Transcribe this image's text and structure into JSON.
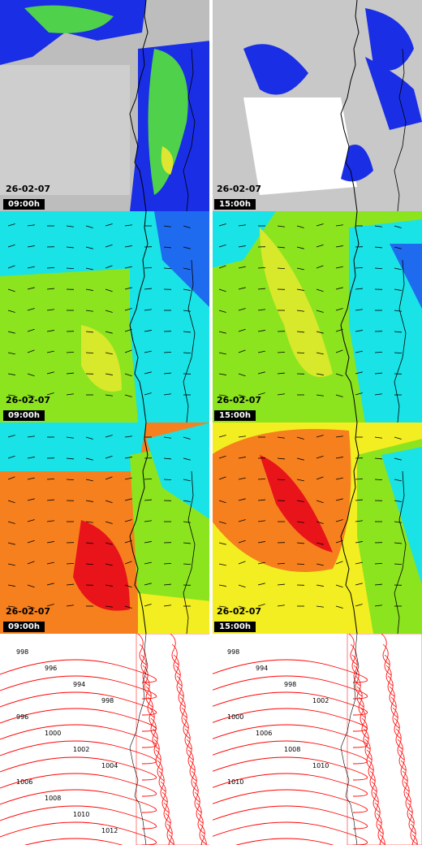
{
  "panels": [
    {
      "id": "cloud-0900",
      "kind": "cloud",
      "date": "26-02-07",
      "time": "09:00h"
    },
    {
      "id": "cloud-1500",
      "kind": "cloud",
      "date": "26-02-07",
      "time": "15:00h"
    },
    {
      "id": "wind-low-0900",
      "kind": "wind",
      "date": "26-02-07",
      "time": "09:00h"
    },
    {
      "id": "wind-low-1500",
      "kind": "wind",
      "date": "26-02-07",
      "time": "15:00h"
    },
    {
      "id": "wind-high-0900",
      "kind": "windhot",
      "date": "26-02-07",
      "time": "09:00h"
    },
    {
      "id": "wind-high-1500",
      "kind": "windhot",
      "date": "26-02-07",
      "time": "15:00h"
    },
    {
      "id": "pressure-0900",
      "kind": "pressure",
      "date": "",
      "time": ""
    },
    {
      "id": "pressure-1500",
      "kind": "pressure",
      "date": "",
      "time": ""
    }
  ],
  "isobar_labels": {
    "left": [
      "998",
      "996",
      "994",
      "998",
      "996",
      "1000",
      "1002",
      "1004",
      "1006",
      "1008",
      "1010",
      "1012"
    ],
    "right": [
      "998",
      "994",
      "998",
      "1002",
      "1000",
      "1006",
      "1008",
      "1010",
      "1010"
    ]
  },
  "colors": {
    "cloud_gray": "#bdbdbd",
    "cloud_blue": "#1a2ee6",
    "cloud_green": "#4fd14b",
    "cloud_yellow": "#dfe632",
    "wind_cyan": "#19e3e6",
    "wind_green": "#8ce41f",
    "wind_blue": "#1f6bf0",
    "hot_orange": "#f6801e",
    "hot_red": "#e8141a",
    "hot_yellow": "#f3ee21",
    "isobar": "#ff0000",
    "coast": "#000000"
  }
}
